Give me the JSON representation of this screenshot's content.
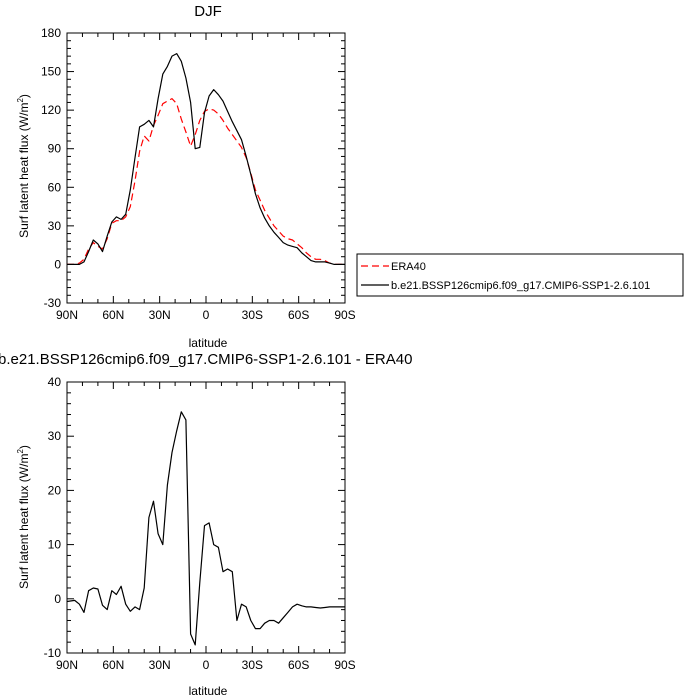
{
  "chart_data": [
    {
      "type": "line",
      "title": "DJF",
      "xlabel": "latitude",
      "ylabel": "Surf latent heat flux (W/m",
      "ylabel_sup": "2",
      "ylabel_end": ")",
      "xlim": [
        90,
        -90
      ],
      "ylim": [
        -30,
        180
      ],
      "x_ticks": [
        90,
        60,
        30,
        0,
        -30,
        -60,
        -90
      ],
      "x_tick_labels": [
        "90N",
        "60N",
        "30N",
        "0",
        "30S",
        "60S",
        "90S"
      ],
      "y_ticks": [
        -30,
        0,
        30,
        60,
        90,
        120,
        150,
        180
      ],
      "y_tick_labels": [
        "-30",
        "0",
        "30",
        "60",
        "90",
        "120",
        "150",
        "180"
      ],
      "legend_position": "right",
      "series": [
        {
          "name": "ERA40",
          "color": "#ff0000",
          "dash": true,
          "x": [
            90,
            85,
            82,
            79,
            76,
            73,
            70,
            67,
            64,
            61,
            58,
            55,
            52,
            49,
            46,
            43,
            40,
            37,
            34,
            31,
            28,
            25,
            22,
            19,
            16,
            13,
            10,
            7,
            4,
            1,
            -2,
            -5,
            -8,
            -11,
            -14,
            -17,
            -20,
            -23,
            -26,
            -29,
            -32,
            -35,
            -38,
            -41,
            -44,
            -47,
            -50,
            -53,
            -56,
            -59,
            -62,
            -65,
            -68,
            -71,
            -74,
            -77,
            -80,
            -83,
            -86,
            -90
          ],
          "y": [
            0,
            0,
            1,
            4,
            12,
            17,
            14,
            12,
            20,
            32,
            34,
            34,
            37,
            45,
            65,
            88,
            100,
            96,
            108,
            116,
            125,
            127,
            129,
            125,
            113,
            103,
            92,
            101,
            112,
            119,
            121,
            120,
            117,
            112,
            106,
            101,
            96,
            91,
            83,
            71,
            58,
            50,
            42,
            36,
            30,
            26,
            22,
            20,
            19,
            16,
            13,
            9,
            6,
            4,
            4,
            3,
            1,
            0,
            0,
            0
          ]
        },
        {
          "name": "b.e21.BSSP126cmip6.f09_g17.CMIP6-SSP1-2.6.101",
          "color": "#000000",
          "dash": false,
          "x": [
            90,
            85,
            82,
            79,
            76,
            73,
            70,
            67,
            64,
            61,
            58,
            55,
            52,
            49,
            46,
            43,
            40,
            37,
            34,
            31,
            28,
            25,
            22,
            19,
            16,
            13,
            10,
            7,
            4,
            1,
            -2,
            -5,
            -8,
            -11,
            -14,
            -17,
            -20,
            -23,
            -26,
            -29,
            -32,
            -35,
            -38,
            -41,
            -44,
            -47,
            -50,
            -53,
            -56,
            -59,
            -62,
            -65,
            -68,
            -71,
            -74,
            -77,
            -80,
            -83,
            -86,
            -90
          ],
          "y": [
            0,
            0,
            0,
            2,
            10,
            19,
            16,
            10,
            22,
            33,
            37,
            35,
            39,
            58,
            83,
            107,
            109,
            112,
            107,
            129,
            148,
            154,
            162,
            164,
            158,
            145,
            126,
            90,
            91,
            118,
            131,
            136,
            132,
            127,
            119,
            111,
            104,
            97,
            84,
            70,
            55,
            44,
            36,
            30,
            25,
            21,
            17,
            15,
            14,
            13,
            9,
            6,
            3,
            2,
            2,
            2,
            1,
            0,
            0,
            0
          ]
        }
      ]
    },
    {
      "type": "line",
      "title": "b.e21.BSSP126cmip6.f09_g17.CMIP6-SSP1-2.6.101 - ERA40",
      "xlabel": "latitude",
      "ylabel": "Surf latent heat flux (W/m",
      "ylabel_sup": "2",
      "ylabel_end": ")",
      "xlim": [
        90,
        -90
      ],
      "ylim": [
        -10,
        40
      ],
      "x_ticks": [
        90,
        60,
        30,
        0,
        -30,
        -60,
        -90
      ],
      "x_tick_labels": [
        "90N",
        "60N",
        "30N",
        "0",
        "30S",
        "60S",
        "90S"
      ],
      "y_ticks": [
        -10,
        0,
        10,
        20,
        30,
        40
      ],
      "y_tick_labels": [
        "-10",
        "0",
        "10",
        "20",
        "30",
        "40"
      ],
      "series": [
        {
          "color": "#000000",
          "dash": false,
          "x": [
            90,
            85,
            82,
            79,
            76,
            73,
            70,
            67,
            64,
            61,
            58,
            55,
            52,
            49,
            46,
            43,
            40,
            37,
            34,
            31,
            28,
            25,
            22,
            19,
            16,
            13,
            10,
            7,
            4,
            1,
            -2,
            -5,
            -8,
            -11,
            -14,
            -17,
            -20,
            -23,
            -26,
            -29,
            -32,
            -35,
            -38,
            -41,
            -44,
            -47,
            -50,
            -53,
            -56,
            -59,
            -62,
            -65,
            -68,
            -71,
            -74,
            -77,
            -80,
            -83,
            -86,
            -90
          ],
          "y": [
            -0.5,
            -0.3,
            -1.0,
            -2.5,
            1.5,
            2.0,
            1.8,
            -1.2,
            -2.0,
            1.5,
            0.8,
            2.3,
            -1.0,
            -2.3,
            -1.5,
            -2.0,
            2.0,
            15.0,
            18.0,
            12.0,
            10.0,
            21.0,
            27.0,
            31.0,
            34.5,
            33.0,
            -6.5,
            -8.5,
            3.0,
            13.5,
            14.0,
            10.0,
            9.5,
            5.0,
            5.5,
            5.0,
            -4.0,
            -1.0,
            -1.5,
            -4.0,
            -5.5,
            -5.5,
            -4.5,
            -4.0,
            -4.0,
            -4.5,
            -3.5,
            -2.5,
            -1.5,
            -1.0,
            -1.3,
            -1.5,
            -1.5,
            -1.6,
            -1.7,
            -1.6,
            -1.5,
            -1.5,
            -1.5,
            -1.5
          ]
        }
      ]
    }
  ]
}
